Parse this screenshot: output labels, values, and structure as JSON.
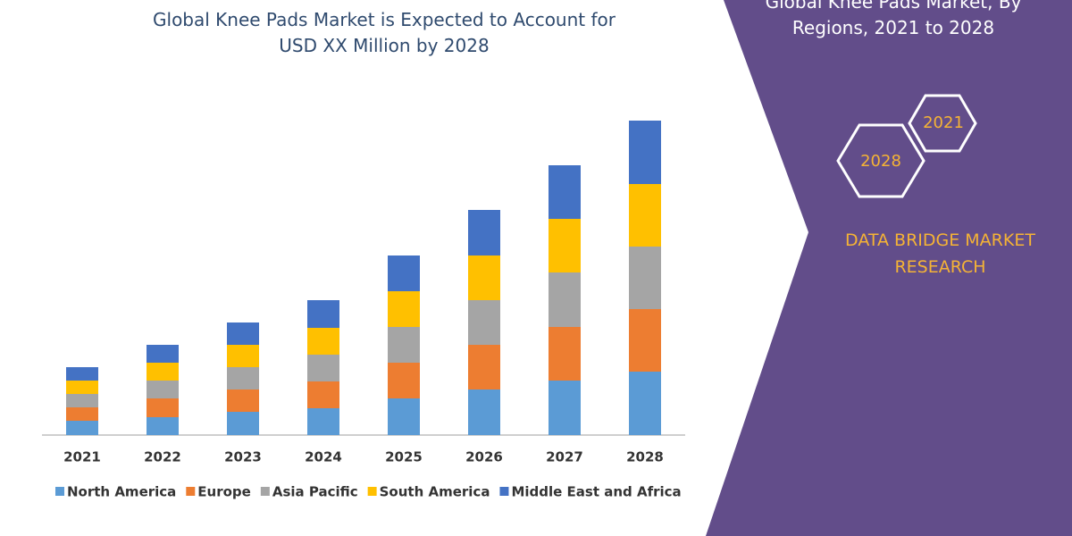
{
  "chart_data": {
    "type": "stacked_bar",
    "title": "Global Knee Pads Market is Expected to Account for USD XX Million by 2028",
    "categories": [
      "2021",
      "2022",
      "2023",
      "2024",
      "2025",
      "2026",
      "2027",
      "2028"
    ],
    "series": [
      {
        "name": "North America",
        "color": "#5b9bd5",
        "values": [
          16,
          20,
          26,
          30,
          41,
          51,
          61,
          71
        ]
      },
      {
        "name": "Europe",
        "color": "#ed7d31",
        "values": [
          15,
          21,
          25,
          30,
          40,
          50,
          60,
          70
        ]
      },
      {
        "name": "Asia Pacific",
        "color": "#a5a5a5",
        "values": [
          15,
          20,
          25,
          30,
          40,
          50,
          61,
          70
        ]
      },
      {
        "name": "South America",
        "color": "#ffc000",
        "values": [
          15,
          20,
          25,
          30,
          40,
          50,
          60,
          70
        ]
      },
      {
        "name": "Middle East and Africa",
        "color": "#4472c4",
        "values": [
          15,
          20,
          25,
          31,
          40,
          51,
          60,
          71
        ]
      }
    ],
    "ylim": [
      0,
      352
    ]
  },
  "side_panel": {
    "title": "Global Knee Pads Market, By Regions, 2021 to 2028",
    "hex_labels": [
      "2021",
      "2028"
    ],
    "brand": "DATA BRIDGE MARKET RESEARCH"
  }
}
